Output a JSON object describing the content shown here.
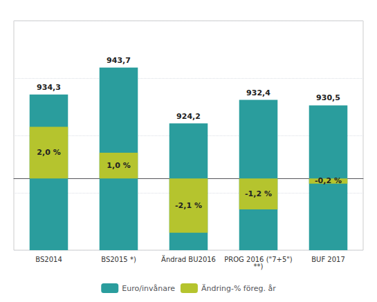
{
  "chart_data": {
    "type": "bar",
    "categories": [
      "BS2014",
      "BS2015 *)",
      "Ändrad BU2016",
      "PROG 2016 (\"7+5\")\n**)",
      "BUF 2017"
    ],
    "series": [
      {
        "name": "Euro/invånare",
        "color": "#2a9d9d",
        "values": [
          934.3,
          943.7,
          924.2,
          932.4,
          930.5
        ],
        "value_labels": [
          "934,3",
          "943,7",
          "924,2",
          "932,4",
          "930,5"
        ]
      },
      {
        "name": "Ändring-% föreg. år",
        "color": "#b5c42e",
        "axis": "y2",
        "values": [
          2.0,
          1.0,
          -2.1,
          -1.2,
          -0.2
        ],
        "value_labels": [
          "2,0 %",
          "1,0 %",
          "-2,1 %",
          "-1,2 %",
          "-0,2 %"
        ]
      }
    ],
    "ylim": [
      880,
      960
    ],
    "yticks": [
      880,
      900,
      920,
      940,
      960
    ],
    "y2lim": [
      -2.7777777777777777,
      6.111111111111111
    ],
    "grid": true,
    "data_labels": true,
    "tick_labels": "x",
    "legend": "bottom"
  }
}
